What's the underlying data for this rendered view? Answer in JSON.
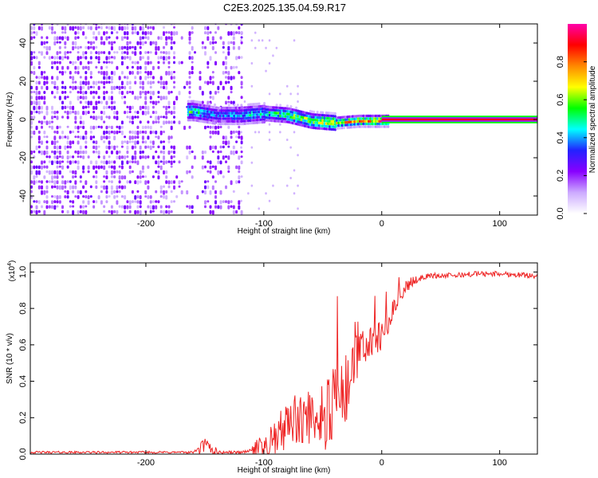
{
  "title": "C2E3.2025.135.04.59.R17",
  "chart_data": [
    {
      "type": "heatmap",
      "xlabel": "Height of straight line (km)",
      "ylabel": "Frequency (Hz)",
      "xlim": [
        -298,
        132
      ],
      "ylim": [
        -50,
        50
      ],
      "x_ticks": [
        -200,
        -100,
        0,
        100
      ],
      "x_tick_labels": [
        "-200",
        "-100",
        "0",
        "100"
      ],
      "y_ticks": [
        -40,
        -20,
        0,
        20,
        40
      ],
      "y_tick_labels": [
        "-40",
        "-20",
        "0",
        "20",
        "40"
      ],
      "grid": false,
      "colorbar": {
        "label": "Normalized spectral amplitude",
        "range": [
          0,
          1
        ],
        "ticks": [
          0,
          0.2,
          0.4,
          0.6,
          0.8
        ],
        "tick_labels": [
          "0.0",
          "0.2",
          "0.4",
          "0.6",
          "0.8"
        ],
        "colors": [
          "#ffffff",
          "#ccaaff",
          "#8800ff",
          "#2222ff",
          "#00ffff",
          "#00ff00",
          "#ffff00",
          "#ff8800",
          "#ff0000",
          "#ff00aa"
        ]
      },
      "ridge": [
        {
          "x": -160,
          "y": 5,
          "z": 0.55
        },
        {
          "x": -140,
          "y": 3,
          "z": 0.35
        },
        {
          "x": -120,
          "y": 3,
          "z": 0.45
        },
        {
          "x": -100,
          "y": 4,
          "z": 0.5
        },
        {
          "x": -80,
          "y": 3,
          "z": 0.6
        },
        {
          "x": -60,
          "y": 0,
          "z": 0.65
        },
        {
          "x": -40,
          "y": -1,
          "z": 0.75
        },
        {
          "x": -20,
          "y": 0,
          "z": 0.8
        },
        {
          "x": 0,
          "y": 0,
          "z": 0.9
        },
        {
          "x": 132,
          "y": 0,
          "z": 1.0
        }
      ]
    },
    {
      "type": "line",
      "xlabel": "Height of straight line (km)",
      "ylabel": "SNR (10 * v/v)",
      "y_multiplier_base": "(x10",
      "y_multiplier_exp": "4",
      "y_multiplier_close": ")",
      "xlim": [
        -298,
        132
      ],
      "ylim": [
        0,
        1.05
      ],
      "x_ticks": [
        -200,
        -100,
        0,
        100
      ],
      "x_tick_labels": [
        "-200",
        "-100",
        "0",
        "100"
      ],
      "y_ticks": [
        0,
        0.2,
        0.4,
        0.6,
        0.8,
        1.0
      ],
      "y_tick_labels": [
        "0.0",
        "0.2",
        "0.4",
        "0.6",
        "0.8",
        "1.0"
      ],
      "grid": false,
      "series": [
        {
          "color": "#ee2222",
          "x": [
            -298,
            -250,
            -200,
            -160,
            -150,
            -140,
            -120,
            -100,
            -90,
            -80,
            -70,
            -60,
            -50,
            -40,
            -30,
            -25,
            -20,
            -10,
            0,
            10,
            20,
            30,
            40,
            60,
            80,
            100,
            132
          ],
          "y": [
            0.01,
            0.01,
            0.01,
            0.01,
            0.05,
            0.01,
            0.01,
            0.03,
            0.08,
            0.15,
            0.2,
            0.2,
            0.22,
            0.25,
            0.3,
            0.45,
            0.55,
            0.6,
            0.65,
            0.8,
            0.92,
            0.96,
            0.98,
            0.98,
            0.99,
            0.99,
            0.98
          ]
        }
      ]
    }
  ]
}
